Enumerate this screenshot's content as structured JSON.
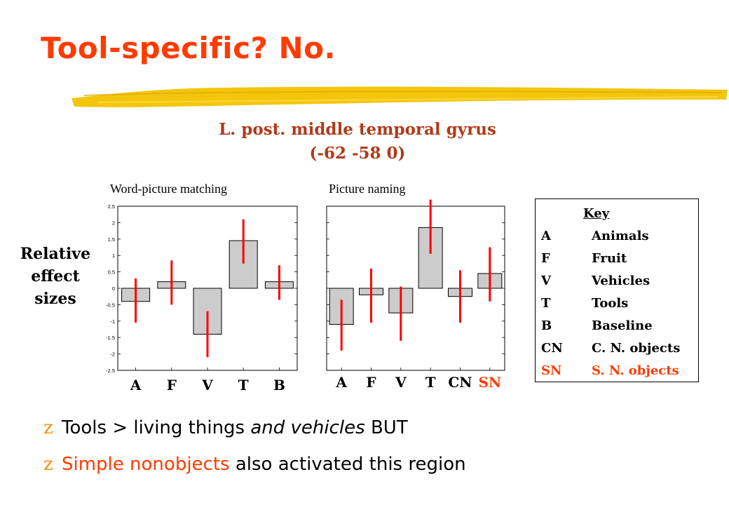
{
  "slide": {
    "title": "Tool-specific?  No.",
    "brush_color": "#f2c300"
  },
  "chart_header": {
    "line1": "L. post. middle temporal gyrus",
    "line2": "(-62 -58 0)"
  },
  "y_axis_label": {
    "line1": "Relative",
    "line2": "effect",
    "line3": "sizes"
  },
  "chart_data": [
    {
      "type": "bar",
      "title": "Word-picture matching",
      "categories": [
        "A",
        "F",
        "V",
        "T",
        "B"
      ],
      "values": [
        -0.4,
        0.2,
        -1.4,
        1.45,
        0.2
      ],
      "error_low": [
        -1.05,
        -0.5,
        -2.1,
        0.75,
        -0.35
      ],
      "error_high": [
        0.3,
        0.85,
        -0.7,
        2.1,
        0.7
      ],
      "ylim": [
        -2.5,
        2.5
      ],
      "yticks": [
        "2.5",
        "2",
        "1.5",
        "1",
        "0.5",
        "0",
        "-0.5",
        "-1",
        "-1.5",
        "-2",
        "-2.5"
      ],
      "bar_color": "#cccccc",
      "error_color": "#ff0000",
      "label_colors": [
        "#000000",
        "#000000",
        "#000000",
        "#000000",
        "#000000"
      ]
    },
    {
      "type": "bar",
      "title": "Picture naming",
      "categories": [
        "A",
        "F",
        "V",
        "T",
        "CN",
        "SN"
      ],
      "values": [
        -1.1,
        -0.2,
        -0.75,
        1.85,
        -0.25,
        0.45
      ],
      "error_low": [
        -1.9,
        -1.05,
        -1.6,
        1.05,
        -1.05,
        -0.4
      ],
      "error_high": [
        -0.35,
        0.6,
        0.05,
        2.7,
        0.55,
        1.25
      ],
      "ylim": [
        -2.5,
        2.5
      ],
      "bar_color": "#cccccc",
      "error_color": "#ff0000",
      "label_colors": [
        "#000000",
        "#000000",
        "#000000",
        "#000000",
        "#000000",
        "#ff3b00"
      ]
    }
  ],
  "key": {
    "heading": "Key",
    "items": [
      {
        "code": "A",
        "label": "Animals"
      },
      {
        "code": "F",
        "label": "Fruit"
      },
      {
        "code": "V",
        "label": "Vehicles"
      },
      {
        "code": "T",
        "label": "Tools"
      },
      {
        "code": "B",
        "label": "Baseline"
      },
      {
        "code": "CN",
        "label": "C. N. objects"
      },
      {
        "code": "SN",
        "label": "S. N. objects"
      }
    ],
    "highlight_color": "#ff3b00"
  },
  "bullets": {
    "marker": "z",
    "b1_part1": "Tools > living things ",
    "b1_italic": "and vehicles",
    "b1_part2": " BUT",
    "b2_highlight": "Simple nonobjects",
    "b2_rest": " also activated this region"
  }
}
